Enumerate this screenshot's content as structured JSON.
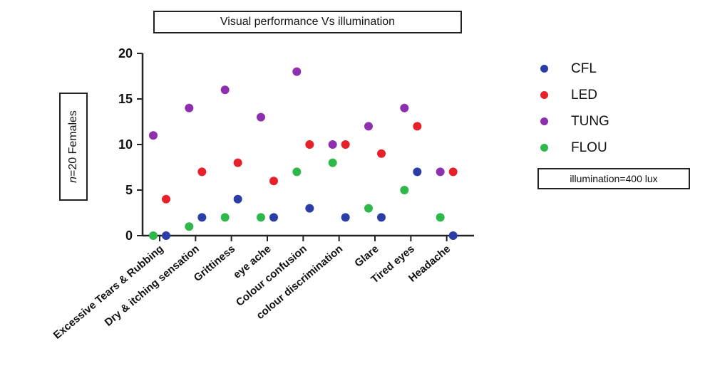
{
  "chart_data": {
    "type": "scatter",
    "title": "Visual performance Vs illumination",
    "ylabel": "n=20 Females",
    "ylabel_italic_part": "n",
    "ylabel_rest": "=20 Females",
    "xlabel": "",
    "note": "illumination=400 lux",
    "ylim": [
      0,
      20
    ],
    "yticks": [
      0,
      5,
      10,
      15,
      20
    ],
    "grid": false,
    "legend_position": "right",
    "categories": [
      "Excessive Tears & Rubbing",
      "Dry & itching sensation",
      "Grittiness",
      "eye ache",
      "Colour confusion",
      "colour discrimination",
      "Glare",
      "Tired eyes",
      "Headache"
    ],
    "series": [
      {
        "name": "CFL",
        "color": "#2b3ea8",
        "values": [
          0,
          2,
          4,
          2,
          3,
          2,
          2,
          7,
          0
        ]
      },
      {
        "name": "LED",
        "color": "#e8202a",
        "values": [
          4,
          7,
          8,
          6,
          10,
          10,
          9,
          12,
          7
        ]
      },
      {
        "name": "TUNG",
        "color": "#8e2fb0",
        "values": [
          11,
          14,
          16,
          13,
          18,
          10,
          12,
          14,
          7
        ]
      },
      {
        "name": "FLOU",
        "color": "#2eb84a",
        "values": [
          0,
          1,
          2,
          2,
          7,
          8,
          3,
          5,
          2
        ]
      }
    ]
  }
}
